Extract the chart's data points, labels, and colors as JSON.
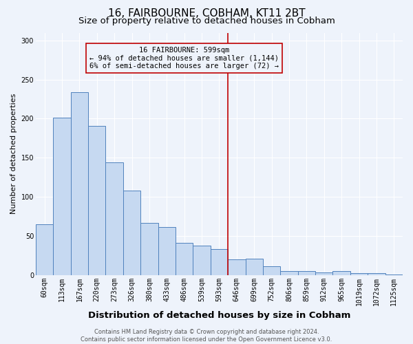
{
  "title": "16, FAIRBOURNE, COBHAM, KT11 2BT",
  "subtitle": "Size of property relative to detached houses in Cobham",
  "xlabel": "Distribution of detached houses by size in Cobham",
  "ylabel": "Number of detached properties",
  "categories": [
    "60sqm",
    "113sqm",
    "167sqm",
    "220sqm",
    "273sqm",
    "326sqm",
    "380sqm",
    "433sqm",
    "486sqm",
    "539sqm",
    "593sqm",
    "646sqm",
    "699sqm",
    "752sqm",
    "806sqm",
    "859sqm",
    "912sqm",
    "965sqm",
    "1019sqm",
    "1072sqm",
    "1125sqm"
  ],
  "values": [
    65,
    201,
    234,
    191,
    144,
    108,
    67,
    61,
    41,
    38,
    33,
    20,
    21,
    11,
    5,
    5,
    3,
    5,
    2,
    2,
    1
  ],
  "bar_color": "#c6d9f1",
  "bar_edge_color": "#4f81bd",
  "vline_x_index": 10,
  "vline_color": "#c00000",
  "annotation_line1": "16 FAIRBOURNE: 599sqm",
  "annotation_line2": "← 94% of detached houses are smaller (1,144)",
  "annotation_line3": "6% of semi-detached houses are larger (72) →",
  "annotation_box_color": "#c00000",
  "ylim": [
    0,
    310
  ],
  "yticks": [
    0,
    50,
    100,
    150,
    200,
    250,
    300
  ],
  "footer_line1": "Contains HM Land Registry data © Crown copyright and database right 2024.",
  "footer_line2": "Contains public sector information licensed under the Open Government Licence v3.0.",
  "background_color": "#eef3fb",
  "grid_color": "#ffffff",
  "title_fontsize": 11,
  "subtitle_fontsize": 9.5,
  "xlabel_fontsize": 9.5,
  "ylabel_fontsize": 8,
  "tick_fontsize": 7,
  "annotation_fontsize": 7.5,
  "footer_fontsize": 6
}
